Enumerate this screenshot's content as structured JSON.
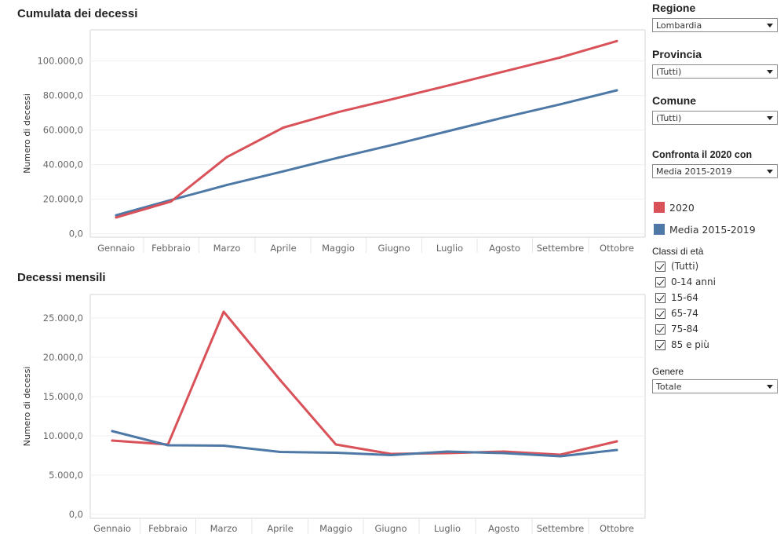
{
  "chart_data": [
    {
      "type": "line",
      "title": "Cumulata dei decessi",
      "xlabel": "",
      "ylabel": "Numero di decessi",
      "categories": [
        "Gennaio",
        "Febbraio",
        "Marzo",
        "Aprile",
        "Maggio",
        "Giugno",
        "Luglio",
        "Agosto",
        "Settembre",
        "Ottobre"
      ],
      "ylim": [
        -2000,
        118000
      ],
      "yticks": [
        0,
        20000,
        40000,
        60000,
        80000,
        100000
      ],
      "ytick_labels": [
        "0,0",
        "20.000,0",
        "40.000,0",
        "60.000,0",
        "80.000,0",
        "100.000,0"
      ],
      "series": [
        {
          "name": "2020",
          "color": "#D9525A",
          "values": [
            9400,
            18700,
            44300,
            61400,
            70400,
            78100,
            86000,
            94000,
            102000,
            111500
          ]
        },
        {
          "name": "Media 2015-2019",
          "color": "#4E79A7",
          "values": [
            10700,
            19500,
            28200,
            36100,
            44000,
            51600,
            59600,
            67400,
            74900,
            83000
          ]
        }
      ]
    },
    {
      "type": "line",
      "title": "Decessi mensili",
      "xlabel": "",
      "ylabel": "Numero di decessi",
      "categories": [
        "Gennaio",
        "Febbraio",
        "Marzo",
        "Aprile",
        "Maggio",
        "Giugno",
        "Luglio",
        "Agosto",
        "Settembre",
        "Ottobre"
      ],
      "ylim": [
        -500,
        28000
      ],
      "yticks": [
        0,
        5000,
        10000,
        15000,
        20000,
        25000
      ],
      "ytick_labels": [
        "0,0",
        "5.000,0",
        "10.000,0",
        "15.000,0",
        "20.000,0",
        "25.000,0"
      ],
      "series": [
        {
          "name": "2020",
          "color": "#D9525A",
          "values": [
            9400,
            8900,
            25800,
            17100,
            8900,
            7700,
            7800,
            8000,
            7600,
            9300
          ]
        },
        {
          "name": "Media 2015-2019",
          "color": "#4E79A7",
          "values": [
            10600,
            8800,
            8750,
            7950,
            7850,
            7550,
            8000,
            7800,
            7400,
            8200
          ]
        }
      ]
    }
  ],
  "filters": {
    "regione": {
      "label": "Regione",
      "value": "Lombardia"
    },
    "provincia": {
      "label": "Provincia",
      "value": "(Tutti)"
    },
    "comune": {
      "label": "Comune",
      "value": "(Tutti)"
    },
    "confronta": {
      "label": "Confronta il 2020 con",
      "value": "Media 2015-2019"
    },
    "genere": {
      "label": "Genere",
      "value": "Totale"
    }
  },
  "legend": [
    {
      "label": "2020",
      "color": "#D9525A"
    },
    {
      "label": "Media 2015-2019",
      "color": "#4E79A7"
    }
  ],
  "age_classes": {
    "label": "Classi di età",
    "items": [
      "(Tutti)",
      "0-14 anni",
      "15-64",
      "65-74",
      "75-84",
      "85 e più"
    ]
  }
}
